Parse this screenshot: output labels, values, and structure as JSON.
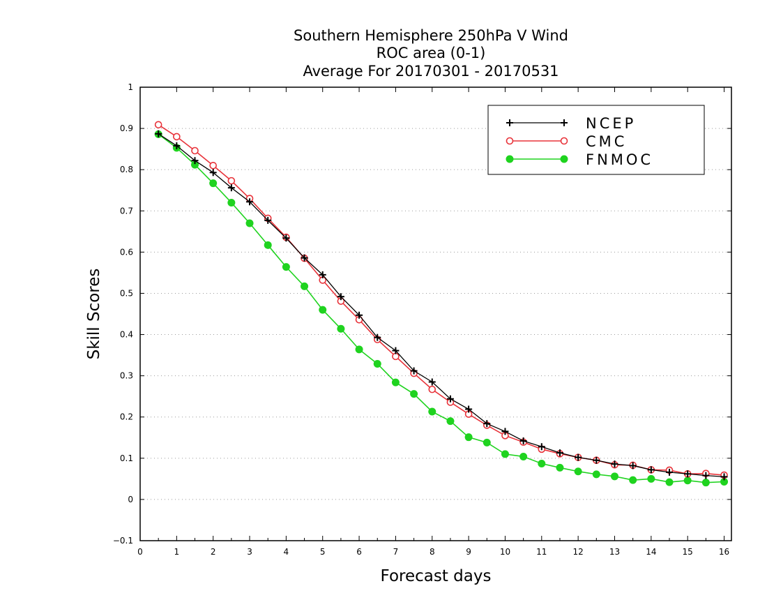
{
  "chart_data": {
    "type": "line",
    "title": [
      "Southern Hemisphere 250hPa V Wind",
      "ROC area (0-1)",
      "Average For 20170301 - 20170531"
    ],
    "xlabel": "Forecast days",
    "ylabel": "Skill Scores",
    "xlim": [
      0,
      16.2
    ],
    "ylim": [
      -0.1,
      1
    ],
    "xticks": [
      0,
      1,
      2,
      3,
      4,
      5,
      6,
      7,
      8,
      9,
      10,
      11,
      12,
      13,
      14,
      15,
      16
    ],
    "yticks": [
      -0.1,
      0,
      0.1,
      0.2,
      0.3,
      0.4,
      0.5,
      0.6,
      0.7,
      0.8,
      0.9,
      1
    ],
    "grid": "horizontal-dotted",
    "legend_position": "top-right",
    "x": [
      0.5,
      1,
      1.5,
      2,
      2.5,
      3,
      3.5,
      4,
      4.5,
      5,
      5.5,
      6,
      6.5,
      7,
      7.5,
      8,
      8.5,
      9,
      9.5,
      10,
      10.5,
      11,
      11.5,
      12,
      12.5,
      13,
      13.5,
      14,
      14.5,
      15,
      15.5,
      16
    ],
    "series": [
      {
        "name": "NCEP",
        "color": "#000000",
        "marker": "plus",
        "values": [
          0.887,
          0.858,
          0.822,
          0.793,
          0.756,
          0.722,
          0.677,
          0.634,
          0.586,
          0.545,
          0.492,
          0.447,
          0.393,
          0.361,
          0.312,
          0.285,
          0.244,
          0.219,
          0.184,
          0.165,
          0.142,
          0.128,
          0.113,
          0.102,
          0.095,
          0.086,
          0.082,
          0.072,
          0.066,
          0.062,
          0.058,
          0.055
        ]
      },
      {
        "name": "CMC",
        "color": "#e8333a",
        "marker": "open-circle",
        "values": [
          0.909,
          0.88,
          0.846,
          0.81,
          0.773,
          0.73,
          0.682,
          0.636,
          0.585,
          0.532,
          0.481,
          0.436,
          0.388,
          0.347,
          0.306,
          0.267,
          0.236,
          0.207,
          0.18,
          0.155,
          0.139,
          0.122,
          0.111,
          0.102,
          0.095,
          0.084,
          0.083,
          0.072,
          0.071,
          0.062,
          0.063,
          0.059
        ]
      },
      {
        "name": "FNMOC",
        "color": "#1fd31f",
        "marker": "filled-circle",
        "values": [
          0.886,
          0.853,
          0.812,
          0.767,
          0.72,
          0.67,
          0.617,
          0.564,
          0.517,
          0.46,
          0.414,
          0.364,
          0.329,
          0.284,
          0.256,
          0.213,
          0.19,
          0.151,
          0.138,
          0.11,
          0.104,
          0.087,
          0.077,
          0.068,
          0.061,
          0.056,
          0.047,
          0.05,
          0.042,
          0.046,
          0.041,
          0.043
        ]
      }
    ]
  }
}
